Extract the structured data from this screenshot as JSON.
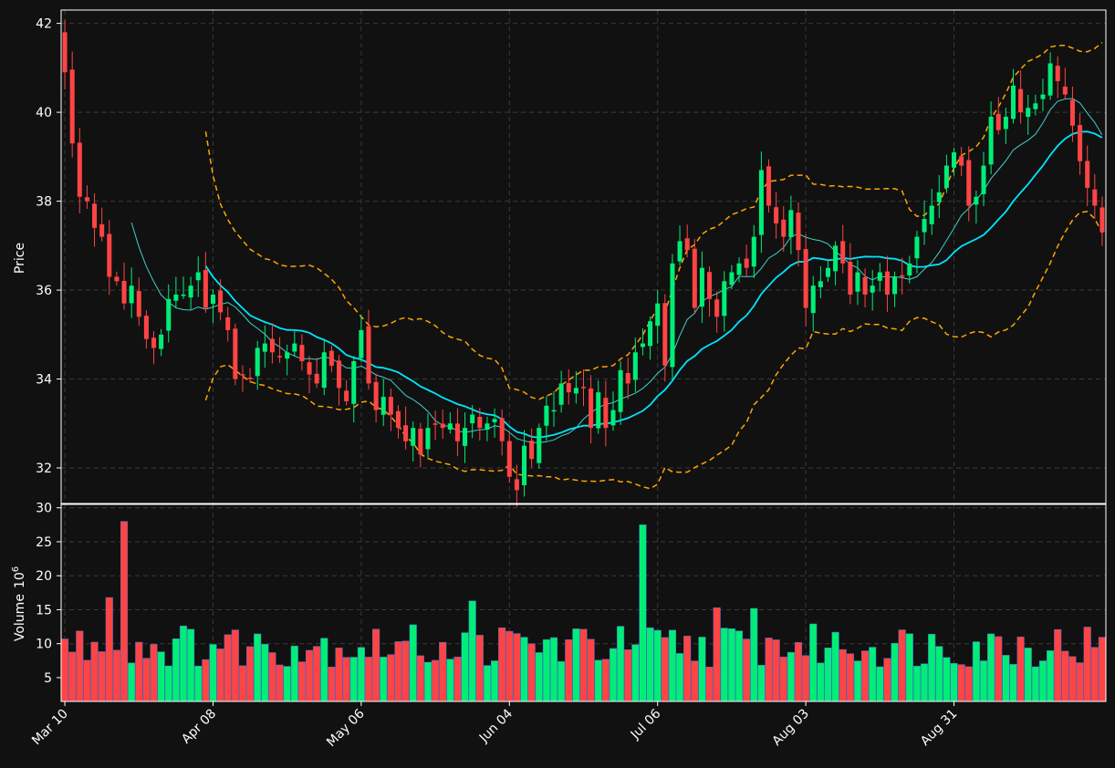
{
  "chart_data": {
    "type": "candlestick",
    "style": {
      "background": "#111111",
      "up_color": "#00ee77",
      "down_color": "#ff4444",
      "bb_color": "#ffa500",
      "ma_slow_color": "#00e5ff",
      "ma_fast_color": "#40d0c8",
      "grid_color": "#3a3a3a",
      "axis_color": "#ffffff"
    },
    "grid": true,
    "x_tick_labels": [
      "Mar 10",
      "Apr 08",
      "May 06",
      "Jun 04",
      "Jul 06",
      "Aug 03",
      "Aug 31"
    ],
    "x_tick_index": [
      0,
      20,
      40,
      60,
      80,
      100,
      120
    ],
    "price_panel": {
      "ylabel": "Price",
      "ylim": [
        31.2,
        42.3
      ],
      "yticks": [
        32,
        34,
        36,
        38,
        40,
        42
      ]
    },
    "volume_panel": {
      "ylabel": "Volume",
      "ylabel_exponent": "10",
      "ylabel_power": "6",
      "ylim": [
        1.5,
        30.5
      ],
      "yticks": [
        5,
        10,
        15,
        20,
        25,
        30
      ]
    },
    "close": [
      40.9,
      39.3,
      38.1,
      38.0,
      37.4,
      37.2,
      36.3,
      36.2,
      35.7,
      36.1,
      35.4,
      34.9,
      34.7,
      35.0,
      35.8,
      35.9,
      35.9,
      36.1,
      36.4,
      35.6,
      35.9,
      35.5,
      35.1,
      34.0,
      34.1,
      34.0,
      34.7,
      34.8,
      34.6,
      34.5,
      34.6,
      34.8,
      34.4,
      34.1,
      33.9,
      34.6,
      34.3,
      33.8,
      33.5,
      34.4,
      35.1,
      33.9,
      33.3,
      33.6,
      33.2,
      32.9,
      32.6,
      32.9,
      32.3,
      32.9,
      33.0,
      32.9,
      33.0,
      32.6,
      32.9,
      33.2,
      32.9,
      33.0,
      33.1,
      32.6,
      31.8,
      31.5,
      32.5,
      32.2,
      32.9,
      33.4,
      33.3,
      33.9,
      33.7,
      33.8,
      33.8,
      32.9,
      33.7,
      32.9,
      33.3,
      34.2,
      33.9,
      34.6,
      34.8,
      35.3,
      35.7,
      34.3,
      36.6,
      37.1,
      36.9,
      35.6,
      36.5,
      35.8,
      35.4,
      36.2,
      36.4,
      36.6,
      36.5,
      37.2,
      38.7,
      37.9,
      37.5,
      37.2,
      37.8,
      36.9,
      35.6,
      36.1,
      36.2,
      36.5,
      37.0,
      36.6,
      35.9,
      36.4,
      35.9,
      36.1,
      36.4,
      35.9,
      36.3,
      36.3,
      36.6,
      37.2,
      37.6,
      37.9,
      38.2,
      38.8,
      39.1,
      38.8,
      37.9,
      38.1,
      38.8,
      39.9,
      39.6,
      39.9,
      40.6,
      40.0,
      40.1,
      40.2,
      40.4,
      41.1,
      40.7,
      40.4,
      39.7,
      38.9,
      38.3,
      37.9,
      37.3
    ]
  }
}
